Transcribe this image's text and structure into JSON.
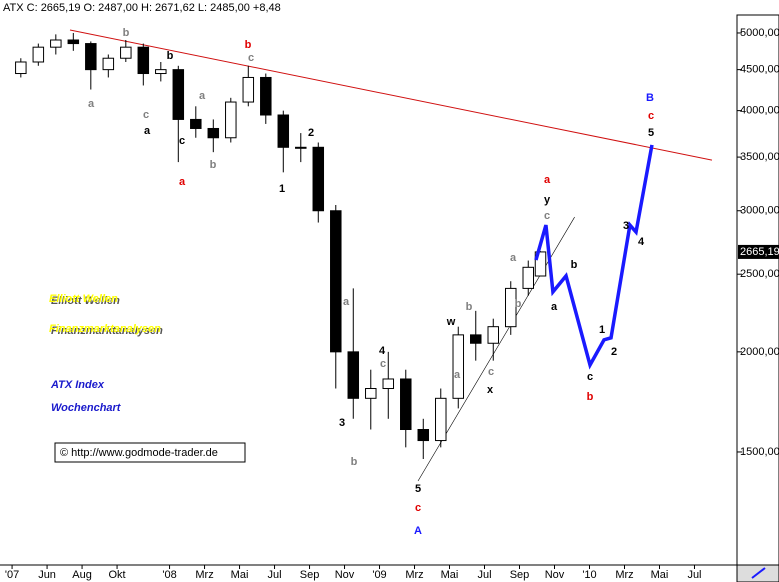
{
  "chart_data": {
    "type": "candlestick",
    "header": "ATX C: 2665,19 O: 2487,00 H: 2671,62 L: 2485,00 +8,48",
    "log_scale": true,
    "ylim": [
      1084,
      5265
    ],
    "yticks": [
      {
        "value": 5000,
        "label": "5000,00"
      },
      {
        "value": 4500,
        "label": "4500,00"
      },
      {
        "value": 4000,
        "label": "4000,00"
      },
      {
        "value": 3500,
        "label": "3500,00"
      },
      {
        "value": 3000,
        "label": "3000,00"
      },
      {
        "value": 2500,
        "label": "2500,00"
      },
      {
        "value": 2000,
        "label": "2000,00"
      },
      {
        "value": 1500,
        "label": "1500,00"
      }
    ],
    "xlim": [
      2.31,
      44.43
    ],
    "xticks": [
      {
        "value": 3,
        "label": "'07"
      },
      {
        "value": 5,
        "label": "Jun"
      },
      {
        "value": 7,
        "label": "Aug"
      },
      {
        "value": 9,
        "label": "Okt"
      },
      {
        "value": 12,
        "label": "'08"
      },
      {
        "value": 14,
        "label": "Mrz"
      },
      {
        "value": 16,
        "label": "Mai"
      },
      {
        "value": 18,
        "label": "Jul"
      },
      {
        "value": 20,
        "label": "Sep"
      },
      {
        "value": 22,
        "label": "Nov"
      },
      {
        "value": 24,
        "label": "'09"
      },
      {
        "value": 26,
        "label": "Mrz"
      },
      {
        "value": 28,
        "label": "Mai"
      },
      {
        "value": 30,
        "label": "Jul"
      },
      {
        "value": 32,
        "label": "Sep"
      },
      {
        "value": 34,
        "label": "Nov"
      },
      {
        "value": 36,
        "label": "'10"
      },
      {
        "value": 38,
        "label": "Mrz"
      },
      {
        "value": 40,
        "label": "Mai"
      },
      {
        "value": 42,
        "label": "Jul"
      }
    ],
    "x": [
      3.5,
      4.5,
      5.5,
      6.5,
      7.5,
      8.5,
      9.5,
      10.5,
      11.5,
      12.5,
      13.5,
      14.5,
      15.5,
      16.5,
      17.5,
      18.5,
      19.5,
      20.5,
      21.5,
      22.5,
      23.5,
      24.5,
      25.5,
      26.5,
      27.5,
      28.5,
      29.5,
      30.5,
      31.5,
      32.5,
      33.2
    ],
    "open": [
      4450,
      4600,
      4800,
      4900,
      4850,
      4500,
      4650,
      4800,
      4450,
      4500,
      3900,
      3800,
      3700,
      4100,
      4400,
      3950,
      3600,
      3600,
      3000,
      2000,
      1750,
      1800,
      1850,
      1600,
      1550,
      1750,
      2100,
      2050,
      2150,
      2400,
      2487
    ],
    "high": [
      4650,
      4850,
      4980,
      5000,
      4880,
      4700,
      4900,
      4850,
      4600,
      4550,
      4050,
      3900,
      4150,
      4550,
      4450,
      4000,
      3750,
      3650,
      3050,
      2400,
      1900,
      2000,
      1900,
      1650,
      1800,
      2150,
      2250,
      2200,
      2450,
      2600,
      2671.62
    ],
    "low": [
      4400,
      4550,
      4700,
      4750,
      4250,
      4400,
      4600,
      4300,
      4350,
      3450,
      3700,
      3550,
      3650,
      4050,
      3850,
      3350,
      3450,
      2900,
      1800,
      1650,
      1600,
      1650,
      1520,
      1470,
      1520,
      1700,
      1950,
      1950,
      2100,
      2350,
      2485
    ],
    "close": [
      4600,
      4800,
      4900,
      4850,
      4500,
      4650,
      4800,
      4450,
      4500,
      3900,
      3800,
      3700,
      4100,
      4400,
      3950,
      3600,
      3600,
      3000,
      2000,
      1750,
      1800,
      1850,
      1600,
      1550,
      1750,
      2100,
      2050,
      2150,
      2400,
      2550,
      2665.19
    ],
    "last_price": {
      "value": 2665.19,
      "label": "2665,19"
    },
    "forecast": {
      "color": "#1a1aff",
      "x": [
        32.94,
        33.51,
        33.91,
        34.66,
        36.03,
        36.83,
        37.23,
        38.31,
        38.66,
        39.57
      ],
      "values": [
        2604,
        2879,
        2376,
        2488,
        1926,
        2070,
        2082,
        2879,
        2822,
        3624
      ]
    },
    "trendline": {
      "color": "#d01010",
      "x": [
        6.31,
        43.0
      ],
      "values": [
        5043,
        3470
      ]
    },
    "channel": {
      "color": "#000000",
      "x": [
        26.2,
        35.15
      ],
      "values": [
        1380,
        2946
      ]
    },
    "labels": [
      {
        "text": "b",
        "color": "#808080"
      },
      {
        "text": "a",
        "color": "#808080"
      },
      {
        "text": "b",
        "color": "#000000"
      },
      {
        "text": "c",
        "color": "#808080"
      },
      {
        "text": "a",
        "color": "#000000"
      },
      {
        "text": "c",
        "color": "#000000"
      },
      {
        "text": "a",
        "color": "#e00000"
      },
      {
        "text": "b",
        "color": "#808080"
      },
      {
        "text": "a",
        "color": "#808080"
      },
      {
        "text": "b",
        "color": "#e00000"
      },
      {
        "text": "c",
        "color": "#808080"
      },
      {
        "text": "2",
        "color": "#000000"
      },
      {
        "text": "1",
        "color": "#000000"
      },
      {
        "text": "a",
        "color": "#808080"
      },
      {
        "text": "3",
        "color": "#000000"
      },
      {
        "text": "b",
        "color": "#808080"
      },
      {
        "text": "4",
        "color": "#000000"
      },
      {
        "text": "c",
        "color": "#808080"
      },
      {
        "text": "5",
        "color": "#000000"
      },
      {
        "text": "c",
        "color": "#e00000"
      },
      {
        "text": "A",
        "color": "#1a1aff"
      },
      {
        "text": "b",
        "color": "#808080"
      },
      {
        "text": "w",
        "color": "#000000"
      },
      {
        "text": "a",
        "color": "#808080"
      },
      {
        "text": "c",
        "color": "#808080"
      },
      {
        "text": "x",
        "color": "#000000"
      },
      {
        "text": "b",
        "color": "#808080"
      },
      {
        "text": "a",
        "color": "#808080"
      },
      {
        "text": "a",
        "color": "#e00000"
      },
      {
        "text": "y",
        "color": "#000000"
      },
      {
        "text": "c",
        "color": "#808080"
      },
      {
        "text": "a",
        "color": "#000000"
      },
      {
        "text": "b",
        "color": "#000000"
      },
      {
        "text": "c",
        "color": "#000000"
      },
      {
        "text": "b",
        "color": "#e00000"
      },
      {
        "text": "1",
        "color": "#000000"
      },
      {
        "text": "2",
        "color": "#000000"
      },
      {
        "text": "3",
        "color": "#000000"
      },
      {
        "text": "4",
        "color": "#000000"
      },
      {
        "text": "5",
        "color": "#000000"
      },
      {
        "text": "c",
        "color": "#e00000"
      },
      {
        "text": "B",
        "color": "#1a1aff"
      }
    ],
    "titles": [
      "Elliott Wellen",
      "Finanzmarktanalysen"
    ],
    "index_title": "ATX Index",
    "subtitle": "Wochenchart",
    "source": "© http://www.godmode-trader.de"
  }
}
